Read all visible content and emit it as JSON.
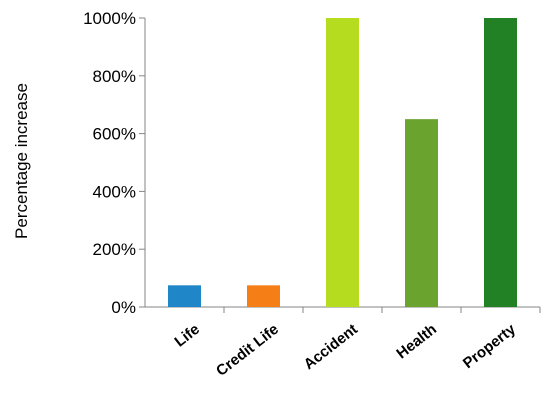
{
  "chart_data": {
    "type": "bar",
    "title": "",
    "xlabel": "",
    "ylabel": "Percentage increase",
    "categories": [
      "Life",
      "Credit Life",
      "Accident",
      "Health",
      "Property"
    ],
    "values": [
      75,
      75,
      1000,
      650,
      1000
    ],
    "unit_suffix": "%",
    "ylim": [
      0,
      1000
    ],
    "yticks": [
      0,
      200,
      400,
      600,
      800,
      1000
    ],
    "ytick_labels": [
      "0%",
      "200%",
      "400%",
      "600%",
      "800%",
      "1000%"
    ],
    "colors": [
      "#1f86c8",
      "#f57f16",
      "#b5dc1e",
      "#6aa32e",
      "#228025"
    ],
    "grid": false,
    "legend": "none"
  }
}
